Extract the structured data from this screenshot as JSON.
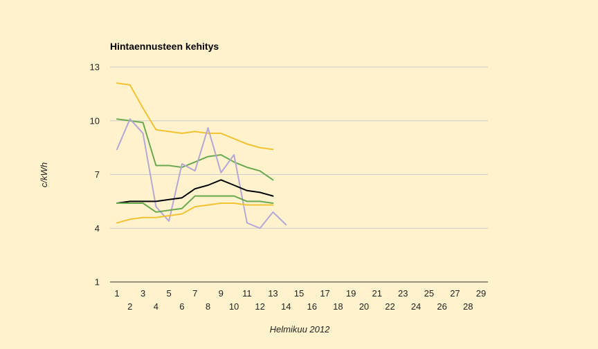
{
  "chart_data": {
    "type": "line",
    "title": "Hintaennusteen kehitys",
    "xlabel": "Helmikuu 2012",
    "ylabel": "c/kWh",
    "xlim": [
      1,
      29
    ],
    "ylim": [
      1,
      13
    ],
    "y_ticks": [
      1,
      4,
      7,
      10,
      13
    ],
    "x_ticks": [
      1,
      2,
      3,
      4,
      5,
      6,
      7,
      8,
      9,
      10,
      11,
      12,
      13,
      14,
      15,
      16,
      17,
      18,
      19,
      20,
      21,
      22,
      23,
      24,
      25,
      26,
      27,
      28,
      29
    ],
    "grid": true,
    "legend": "none",
    "series": [
      {
        "color": "#f1c232",
        "x": [
          1,
          2,
          3,
          4,
          5,
          6,
          7,
          8,
          9,
          10,
          11,
          12,
          13
        ],
        "values": [
          12.1,
          12.0,
          10.7,
          9.5,
          9.4,
          9.3,
          9.4,
          9.3,
          9.3,
          9.0,
          8.7,
          8.5,
          8.4
        ]
      },
      {
        "color": "#6aa84f",
        "x": [
          1,
          2,
          3,
          4,
          5,
          6,
          7,
          8,
          9,
          10,
          11,
          12,
          13
        ],
        "values": [
          10.1,
          10.0,
          9.9,
          7.5,
          7.5,
          7.4,
          7.7,
          8.0,
          8.1,
          7.7,
          7.4,
          7.2,
          6.7
        ]
      },
      {
        "color": "#b4a7d6",
        "x": [
          1,
          2,
          3,
          4,
          5,
          6,
          7,
          8,
          9,
          10,
          11,
          12,
          13,
          14
        ],
        "values": [
          8.4,
          10.1,
          9.3,
          5.2,
          4.4,
          7.6,
          7.2,
          9.6,
          7.1,
          8.1,
          4.3,
          4.0,
          4.9,
          4.2
        ]
      },
      {
        "color": "#000000",
        "x": [
          1,
          2,
          3,
          4,
          5,
          6,
          7,
          8,
          9,
          10,
          11,
          12,
          13
        ],
        "values": [
          5.4,
          5.5,
          5.5,
          5.5,
          5.6,
          5.7,
          6.2,
          6.4,
          6.7,
          6.4,
          6.1,
          6.0,
          5.8
        ]
      },
      {
        "color": "#6aa84f",
        "x": [
          1,
          2,
          3,
          4,
          5,
          6,
          7,
          8,
          9,
          10,
          11,
          12,
          13
        ],
        "values": [
          5.4,
          5.4,
          5.4,
          4.9,
          5.0,
          5.1,
          5.8,
          5.8,
          5.8,
          5.8,
          5.5,
          5.5,
          5.4
        ]
      },
      {
        "color": "#f1c232",
        "x": [
          1,
          2,
          3,
          4,
          5,
          6,
          7,
          8,
          9,
          10,
          11,
          12,
          13
        ],
        "values": [
          4.3,
          4.5,
          4.6,
          4.6,
          4.7,
          4.8,
          5.2,
          5.3,
          5.4,
          5.4,
          5.3,
          5.3,
          5.3
        ]
      }
    ]
  }
}
